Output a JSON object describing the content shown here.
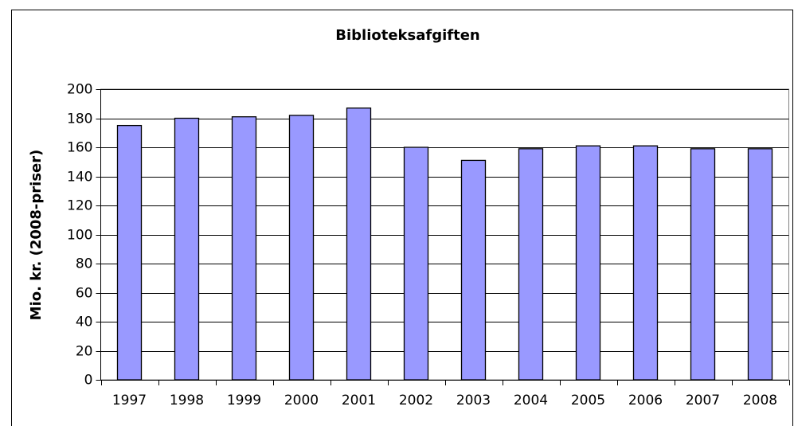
{
  "chart_data": {
    "type": "bar",
    "title": "Biblioteksafgiften",
    "y_label": "Mio. kr. (2008-priser)",
    "categories": [
      "1997",
      "1998",
      "1999",
      "2000",
      "2001",
      "2002",
      "2003",
      "2004",
      "2005",
      "2006",
      "2007",
      "2008"
    ],
    "values": [
      175,
      180,
      181,
      182,
      187,
      160,
      151,
      159,
      161,
      161,
      159,
      159
    ],
    "color": "#9999ff",
    "ylim": [
      0,
      200
    ],
    "yticks": [
      0,
      20,
      40,
      60,
      80,
      100,
      120,
      140,
      160,
      180,
      200
    ],
    "grid": true
  }
}
